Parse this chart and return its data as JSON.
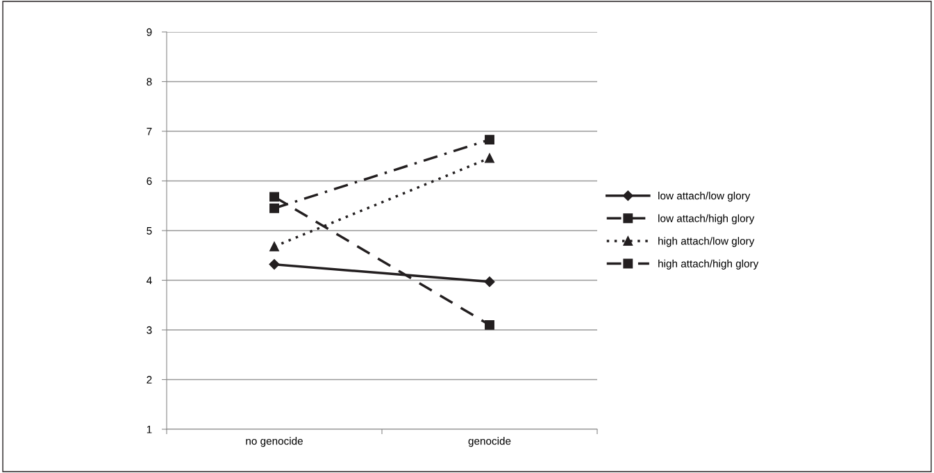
{
  "chart_data": {
    "type": "line",
    "categories": [
      "no genocide",
      "genocide"
    ],
    "series": [
      {
        "name": "low attach/low glory",
        "color": "#231f20",
        "values": [
          4.32,
          3.97
        ],
        "marker": "diamond",
        "line_style": "solid"
      },
      {
        "name": "low attach/high glory",
        "color": "#231f20",
        "values": [
          5.68,
          3.1
        ],
        "marker": "square",
        "line_style": "dashed"
      },
      {
        "name": "high attach/low glory",
        "color": "#231f20",
        "values": [
          4.68,
          6.46
        ],
        "marker": "triangle",
        "line_style": "dotted"
      },
      {
        "name": "high attach/high glory",
        "color": "#231f20",
        "values": [
          5.45,
          6.83
        ],
        "marker": "square",
        "line_style": "dashdot"
      }
    ],
    "ylim": [
      1,
      9
    ],
    "yticks": [
      1,
      2,
      3,
      4,
      5,
      6,
      7,
      8,
      9
    ],
    "grid": "y",
    "legend": "right"
  }
}
